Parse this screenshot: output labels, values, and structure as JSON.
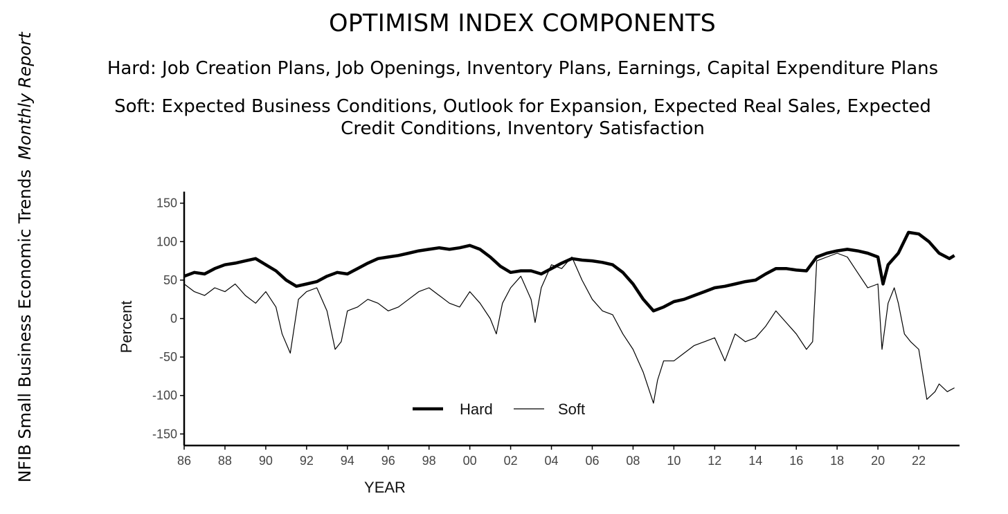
{
  "side_label": {
    "main": "NFIB Small Business Economic Trends",
    "italic": "Monthly Report"
  },
  "chart_data": {
    "type": "line",
    "title": "OPTIMISM INDEX COMPONENTS",
    "subtitle_hard": "Hard: Job Creation Plans, Job Openings, Inventory Plans, Earnings, Capital Expenditure Plans",
    "subtitle_soft": "Soft: Expected Business Conditions, Outlook for Expansion, Expected Real Sales, Expected Credit Conditions, Inventory Satisfaction",
    "xlabel": "YEAR",
    "ylabel": "Percent",
    "xlim": [
      1986,
      2024
    ],
    "ylim": [
      -165,
      165
    ],
    "x_ticks": [
      1986,
      1988,
      1990,
      1992,
      1994,
      1996,
      1998,
      2000,
      2002,
      2004,
      2006,
      2008,
      2010,
      2012,
      2014,
      2016,
      2018,
      2020,
      2022
    ],
    "x_tick_labels": [
      "86",
      "88",
      "90",
      "92",
      "94",
      "96",
      "98",
      "00",
      "02",
      "04",
      "06",
      "08",
      "10",
      "12",
      "14",
      "16",
      "18",
      "20",
      "22"
    ],
    "y_ticks": [
      150,
      100,
      50,
      0,
      -50,
      -100,
      -150
    ],
    "y_tick_labels": [
      "150",
      "100",
      "50",
      "0",
      "-50",
      "-100",
      "-150"
    ],
    "legend": {
      "position": "bottom-left",
      "entries": [
        "Hard",
        "Soft"
      ]
    },
    "grid": false,
    "series": [
      {
        "name": "Hard",
        "style": "thick",
        "color": "#000000",
        "x": [
          1986.0,
          1986.5,
          1987.0,
          1987.5,
          1988.0,
          1988.5,
          1989.0,
          1989.5,
          1990.0,
          1990.5,
          1991.0,
          1991.5,
          1992.0,
          1992.5,
          1993.0,
          1993.5,
          1994.0,
          1994.5,
          1995.0,
          1995.5,
          1996.0,
          1996.5,
          1997.0,
          1997.5,
          1998.0,
          1998.5,
          1999.0,
          1999.5,
          2000.0,
          2000.5,
          2001.0,
          2001.5,
          2002.0,
          2002.5,
          2003.0,
          2003.5,
          2004.0,
          2004.5,
          2005.0,
          2005.5,
          2006.0,
          2006.5,
          2007.0,
          2007.5,
          2008.0,
          2008.5,
          2009.0,
          2009.5,
          2010.0,
          2010.5,
          2011.0,
          2011.5,
          2012.0,
          2012.5,
          2013.0,
          2013.5,
          2014.0,
          2014.5,
          2015.0,
          2015.5,
          2016.0,
          2016.5,
          2017.0,
          2017.5,
          2018.0,
          2018.5,
          2019.0,
          2019.5,
          2020.0,
          2020.25,
          2020.5,
          2021.0,
          2021.5,
          2022.0,
          2022.5,
          2023.0,
          2023.5,
          2023.75
        ],
        "y": [
          55,
          60,
          58,
          65,
          70,
          72,
          75,
          78,
          70,
          62,
          50,
          42,
          45,
          48,
          55,
          60,
          58,
          65,
          72,
          78,
          80,
          82,
          85,
          88,
          90,
          92,
          90,
          92,
          95,
          90,
          80,
          68,
          60,
          62,
          62,
          58,
          65,
          72,
          78,
          76,
          75,
          73,
          70,
          60,
          45,
          25,
          10,
          15,
          22,
          25,
          30,
          35,
          40,
          42,
          45,
          48,
          50,
          58,
          65,
          65,
          63,
          62,
          80,
          85,
          88,
          90,
          88,
          85,
          80,
          45,
          70,
          85,
          112,
          110,
          100,
          85,
          78,
          82
        ]
      },
      {
        "name": "Soft",
        "style": "thin",
        "color": "#000000",
        "x": [
          1986.0,
          1986.5,
          1987.0,
          1987.5,
          1988.0,
          1988.5,
          1989.0,
          1989.5,
          1990.0,
          1990.5,
          1990.8,
          1991.2,
          1991.6,
          1992.0,
          1992.5,
          1993.0,
          1993.4,
          1993.7,
          1994.0,
          1994.5,
          1995.0,
          1995.5,
          1996.0,
          1996.5,
          1997.0,
          1997.5,
          1998.0,
          1998.5,
          1999.0,
          1999.5,
          2000.0,
          2000.5,
          2001.0,
          2001.3,
          2001.6,
          2002.0,
          2002.5,
          2003.0,
          2003.2,
          2003.5,
          2004.0,
          2004.5,
          2005.0,
          2005.5,
          2006.0,
          2006.5,
          2007.0,
          2007.5,
          2008.0,
          2008.5,
          2009.0,
          2009.2,
          2009.5,
          2010.0,
          2010.5,
          2011.0,
          2011.5,
          2012.0,
          2012.5,
          2013.0,
          2013.5,
          2014.0,
          2014.5,
          2015.0,
          2015.5,
          2016.0,
          2016.5,
          2016.8,
          2017.0,
          2017.5,
          2018.0,
          2018.5,
          2019.0,
          2019.5,
          2020.0,
          2020.2,
          2020.5,
          2020.8,
          2021.0,
          2021.3,
          2021.6,
          2022.0,
          2022.4,
          2022.8,
          2023.0,
          2023.4,
          2023.75
        ],
        "y": [
          45,
          35,
          30,
          40,
          35,
          45,
          30,
          20,
          35,
          15,
          -20,
          -45,
          25,
          35,
          40,
          10,
          -40,
          -30,
          10,
          15,
          25,
          20,
          10,
          15,
          25,
          35,
          40,
          30,
          20,
          15,
          35,
          20,
          0,
          -20,
          20,
          40,
          55,
          25,
          -5,
          40,
          70,
          65,
          80,
          50,
          25,
          10,
          5,
          -20,
          -40,
          -70,
          -110,
          -80,
          -55,
          -55,
          -45,
          -35,
          -30,
          -25,
          -55,
          -20,
          -30,
          -25,
          -10,
          10,
          -5,
          -20,
          -40,
          -30,
          75,
          80,
          85,
          80,
          60,
          40,
          45,
          -40,
          20,
          40,
          20,
          -20,
          -30,
          -40,
          -105,
          -95,
          -85,
          -95,
          -90
        ]
      }
    ]
  }
}
